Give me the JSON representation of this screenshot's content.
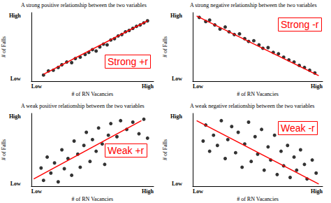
{
  "chart_data": [
    {
      "type": "scatter",
      "title": "A strong positive relationship between the two variables",
      "x_label": "# of RN Vacancies",
      "y_label": "# of Falls",
      "annotation": "Strong +r",
      "color": "#000000",
      "x": [
        1.0,
        1.4,
        1.8,
        2.2,
        2.5,
        2.9,
        3.3,
        3.6,
        4.0,
        4.4,
        4.7,
        5.0,
        5.3,
        5.6,
        5.9,
        6.2,
        6.5,
        6.8,
        7.1,
        7.4,
        7.7,
        8.0,
        8.3,
        8.6,
        8.9,
        9.2,
        9.5
      ],
      "values": [
        0.9,
        1.5,
        1.6,
        2.0,
        2.4,
        2.8,
        2.7,
        3.3,
        3.5,
        3.9,
        4.2,
        4.6,
        4.4,
        5.0,
        5.4,
        5.3,
        6.0,
        6.2,
        6.6,
        6.8,
        7.2,
        7.4,
        7.7,
        8.0,
        8.2,
        8.5,
        8.8
      ],
      "fit_line": {
        "x": [
          1,
          9.5
        ],
        "values": [
          1,
          8.8
        ],
        "color": "#ff0000"
      },
      "xlim": [
        0,
        10
      ],
      "ylim": [
        0,
        10
      ],
      "xticks": [
        {
          "value": 0,
          "label": "Low"
        },
        {
          "value": 10,
          "label": "High"
        }
      ],
      "yticks": [
        {
          "value": 0,
          "label": "Low"
        },
        {
          "value": 10,
          "label": "High"
        }
      ],
      "grid": false
    },
    {
      "type": "scatter",
      "title": "A strong negative relationship between the two variables",
      "x_label": "# of RN Vacancies",
      "y_label": "# of Falls",
      "annotation": "Strong -r",
      "color": "#000000",
      "x": [
        0.5,
        1.0,
        1.3,
        1.7,
        2.1,
        2.5,
        2.8,
        3.2,
        3.6,
        4.0,
        4.3,
        4.7,
        5.1,
        5.4,
        5.8,
        6.2,
        6.6,
        7.0,
        7.4,
        7.8,
        8.2,
        8.6,
        9.0,
        9.4
      ],
      "values": [
        9.3,
        8.7,
        8.9,
        8.2,
        7.6,
        7.9,
        7.2,
        6.8,
        6.9,
        6.2,
        5.8,
        5.9,
        5.3,
        4.8,
        4.9,
        4.2,
        4.0,
        3.5,
        3.1,
        2.8,
        2.3,
        2.0,
        1.6,
        1.2
      ],
      "fit_line": {
        "x": [
          0.3,
          9.7
        ],
        "values": [
          9.5,
          0.8
        ],
        "color": "#ff0000"
      },
      "xlim": [
        0,
        10
      ],
      "ylim": [
        0,
        10
      ],
      "xticks": [
        {
          "value": 0,
          "label": "Low"
        },
        {
          "value": 10,
          "label": "High"
        }
      ],
      "yticks": [
        {
          "value": 0,
          "label": "Low"
        },
        {
          "value": 10,
          "label": "High"
        }
      ],
      "grid": false
    },
    {
      "type": "scatter",
      "title": "A weak positive relationship between the two variables",
      "x_label": "# of RN Vacancies",
      "y_label": "# of Falls",
      "annotation": "Weak +r",
      "color": "#000000",
      "x": [
        0.8,
        1.0,
        1.3,
        1.6,
        1.9,
        2.2,
        2.5,
        2.7,
        3.0,
        3.3,
        3.5,
        3.8,
        4.0,
        4.3,
        4.5,
        4.8,
        5.0,
        5.3,
        5.5,
        5.8,
        6.0,
        6.3,
        6.5,
        7.0,
        7.3,
        7.8,
        8.3,
        8.8,
        9.2,
        9.5
      ],
      "values": [
        2.5,
        0.8,
        4.0,
        1.8,
        3.2,
        0.6,
        5.0,
        2.4,
        3.8,
        1.5,
        6.2,
        4.4,
        2.6,
        5.6,
        7.4,
        3.4,
        6.4,
        4.8,
        8.0,
        5.8,
        3.0,
        7.0,
        8.6,
        6.8,
        9.0,
        7.8,
        8.8,
        7.2,
        9.2,
        6.6
      ],
      "fit_line": {
        "x": [
          0.2,
          9.0
        ],
        "values": [
          1.0,
          9.0
        ],
        "color": "#ff0000"
      },
      "xlim": [
        0,
        10
      ],
      "ylim": [
        0,
        10
      ],
      "xticks": [
        {
          "value": 0,
          "label": "Low"
        },
        {
          "value": 10,
          "label": "High"
        }
      ],
      "yticks": [
        {
          "value": 0,
          "label": "Low"
        },
        {
          "value": 10,
          "label": "High"
        }
      ],
      "grid": false
    },
    {
      "type": "scatter",
      "title": "A weak negative relationship between the two variables",
      "x_label": "# of RN Vacancies",
      "y_label": "# of Falls",
      "annotation": "Weak -r",
      "color": "#000000",
      "x": [
        0.8,
        1.0,
        1.3,
        1.6,
        1.9,
        2.2,
        2.5,
        2.7,
        3.0,
        3.3,
        3.5,
        3.8,
        4.0,
        4.3,
        4.5,
        4.8,
        5.0,
        5.3,
        5.5,
        5.8,
        6.0,
        6.3,
        6.5,
        6.8,
        7.0,
        7.3,
        7.5,
        7.8,
        8.0,
        8.3,
        8.6,
        8.8,
        9.2,
        9.5
      ],
      "values": [
        6.2,
        8.4,
        4.8,
        7.0,
        5.6,
        9.0,
        3.8,
        6.4,
        8.2,
        4.6,
        7.4,
        2.6,
        5.8,
        8.8,
        3.4,
        6.8,
        4.4,
        7.8,
        2.2,
        5.4,
        3.6,
        7.0,
        1.6,
        4.8,
        2.8,
        5.6,
        1.2,
        4.0,
        2.2,
        5.0,
        3.0,
        1.0,
        3.6,
        1.8
      ],
      "fit_line": {
        "x": [
          0.3,
          9.7
        ],
        "values": [
          9.0,
          0.3
        ],
        "color": "#ff0000"
      },
      "xlim": [
        0,
        10
      ],
      "ylim": [
        0,
        10
      ],
      "xticks": [
        {
          "value": 0,
          "label": "Low"
        },
        {
          "value": 10,
          "label": "High"
        }
      ],
      "yticks": [
        {
          "value": 0,
          "label": "Low"
        },
        {
          "value": 10,
          "label": "High"
        }
      ],
      "grid": false
    }
  ]
}
